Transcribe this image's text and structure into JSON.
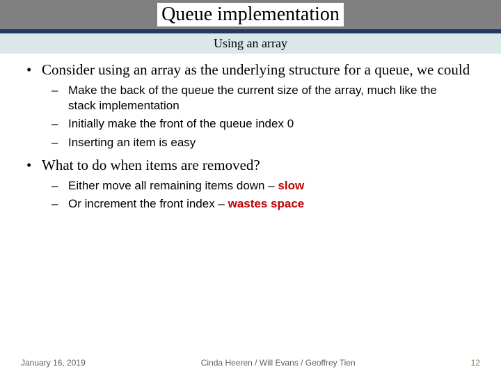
{
  "slide": {
    "title": "Queue implementation",
    "subtitle": "Using an array",
    "title_bg": "#808080",
    "title_underline": "#1f3a5f",
    "subtitle_bg": "#dae8ec",
    "warn_color": "#c00000",
    "body_font": "Times New Roman",
    "sub_font": "Arial",
    "title_fontsize": 28,
    "body_fontsize": 21,
    "sub_fontsize": 17,
    "bullets": [
      {
        "text": "Consider using an array as the underlying structure for a queue, we could",
        "sub": [
          "Make the back of the queue the current size of the array, much like the stack implementation",
          "Initially make the front of the queue index 0",
          "Inserting an item is easy"
        ]
      },
      {
        "text": "What to do when items are removed?",
        "sub_rich": [
          {
            "pre": "Either move all remaining items down – ",
            "warn": "slow"
          },
          {
            "pre": "Or increment the front index – ",
            "warn": "wastes space"
          }
        ]
      }
    ]
  },
  "footer": {
    "date": "January 16, 2019",
    "authors": "Cinda Heeren / Will Evans / Geoffrey Tien",
    "page": "12"
  }
}
